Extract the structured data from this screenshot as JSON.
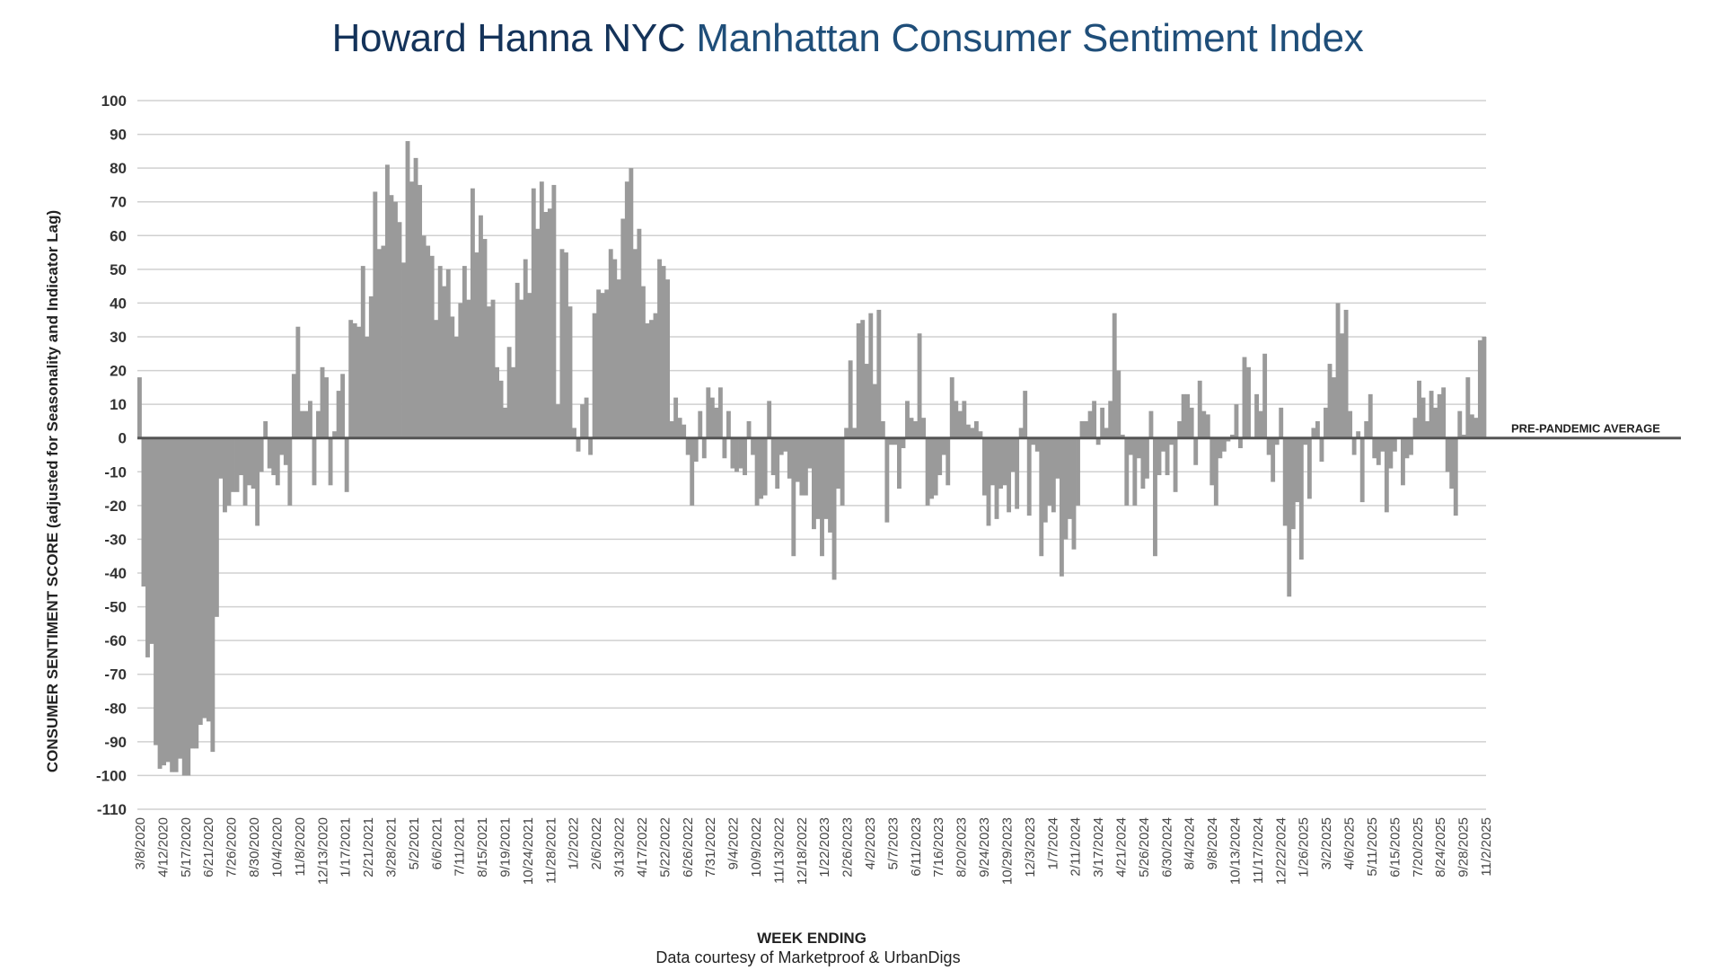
{
  "chart_data": {
    "type": "bar",
    "title": "Howard Hanna NYC Manhattan Consumer Sentiment Index",
    "title_parts": {
      "brand": "Howard Hanna NYC",
      "rest": "Manhattan Consumer Sentiment Index"
    },
    "xlabel": "WEEK ENDING",
    "ylabel": "CONSUMER SENTIMENT SCORE (adjusted for Seasonality and Indicator Lag)",
    "credit": "Data courtesy of Marketproof & UrbanDigs",
    "ylim": [
      -110,
      100
    ],
    "yticks": [
      100,
      90,
      80,
      70,
      60,
      50,
      40,
      30,
      20,
      10,
      0,
      -10,
      -20,
      -30,
      -40,
      -50,
      -60,
      -70,
      -80,
      -90,
      -100,
      -110
    ],
    "grid": true,
    "legend": "none",
    "bar_color": "#9a9a9a",
    "grid_color": "#d0d0d0",
    "zero_line_color": "#555555",
    "reference_line": {
      "label": "PRE-PANDEMIC  AVERAGE",
      "value": 0
    },
    "x_tick_labels": [
      "3/8/2020",
      "4/12/2020",
      "5/17/2020",
      "6/21/2020",
      "7/26/2020",
      "8/30/2020",
      "10/4/2020",
      "11/8/2020",
      "12/13/2020",
      "1/17/2021",
      "2/21/2021",
      "3/28/2021",
      "5/2/2021",
      "6/6/2021",
      "7/11/2021",
      "8/15/2021",
      "9/19/2021",
      "10/24/2021",
      "11/28/2021",
      "1/2/2022",
      "2/6/2022",
      "3/13/2022",
      "4/17/2022",
      "5/22/2022",
      "6/26/2022",
      "7/31/2022",
      "9/4/2022",
      "10/9/2022",
      "11/13/2022",
      "12/18/2022",
      "1/22/2023",
      "2/26/2023",
      "4/2/2023",
      "5/7/2023",
      "6/11/2023",
      "7/16/2023",
      "8/20/2023",
      "9/24/2023",
      "10/29/2023",
      "12/3/2023",
      "1/7/2024",
      "2/11/2024",
      "3/17/2024",
      "4/21/2024",
      "5/26/2024",
      "6/30/2024",
      "8/4/2024",
      "9/8/2024",
      "10/13/2024",
      "11/17/2024",
      "12/22/2024",
      "1/26/2025",
      "3/2/2025",
      "4/6/2025",
      "5/11/2025",
      "6/15/2025",
      "7/20/2025",
      "8/24/2025",
      "9/28/2025",
      "11/2/2025"
    ],
    "values": [
      18,
      -44,
      -65,
      -61,
      -91,
      -98,
      -97,
      -96,
      -99,
      -99,
      -95,
      -100,
      -100,
      -92,
      -92,
      -85,
      -83,
      -84,
      -93,
      -53,
      -12,
      -22,
      -20,
      -16,
      -16,
      -11,
      -20,
      -14,
      -15,
      -26,
      -10,
      5,
      -9,
      -11,
      -14,
      -5,
      -8,
      -20,
      19,
      33,
      8,
      8,
      11,
      -14,
      8,
      21,
      18,
      -14,
      2,
      14,
      19,
      -16,
      35,
      34,
      33,
      51,
      30,
      42,
      73,
      56,
      57,
      81,
      72,
      70,
      64,
      52,
      88,
      76,
      83,
      75,
      60,
      57,
      54,
      35,
      51,
      45,
      50,
      36,
      30,
      40,
      51,
      41,
      74,
      55,
      66,
      59,
      39,
      41,
      21,
      17,
      9,
      27,
      21,
      46,
      41,
      53,
      43,
      74,
      62,
      76,
      67,
      68,
      75,
      10,
      56,
      55,
      39,
      3,
      -4,
      10,
      12,
      -5,
      37,
      44,
      43,
      44,
      56,
      53,
      47,
      65,
      76,
      80,
      56,
      62,
      45,
      34,
      35,
      37,
      53,
      51,
      47,
      5,
      12,
      6,
      4,
      -5,
      -20,
      -7,
      8,
      -6,
      15,
      12,
      9,
      15,
      -6,
      8,
      -9,
      -10,
      -9,
      -11,
      5,
      -5,
      -20,
      -18,
      -17,
      11,
      -11,
      -15,
      -5,
      -4,
      -12,
      -35,
      -13,
      -17,
      -17,
      -9,
      -27,
      -24,
      -35,
      -24,
      -28,
      -42,
      -15,
      -20,
      3,
      23,
      3,
      34,
      35,
      22,
      37,
      16,
      38,
      5,
      -25,
      -2,
      -2,
      -15,
      -3,
      11,
      6,
      5,
      31,
      6,
      -20,
      -18,
      -17,
      -11,
      -5,
      -14,
      18,
      11,
      8,
      11,
      4,
      3,
      5,
      2,
      -17,
      -26,
      -14,
      -24,
      -15,
      -14,
      -22,
      -10,
      -21,
      3,
      14,
      -23,
      -2,
      -4,
      -35,
      -25,
      -20,
      -22,
      -12,
      -41,
      -30,
      -24,
      -33,
      -20,
      5,
      5,
      8,
      11,
      -2,
      9,
      3,
      11,
      37,
      20,
      1,
      -20,
      -5,
      -20,
      -6,
      -15,
      -12,
      8,
      -35,
      -11,
      -4,
      -11,
      -2,
      -16,
      5,
      13,
      13,
      9,
      -8,
      17,
      8,
      7,
      -14,
      -20,
      -6,
      -4,
      -1,
      1,
      10,
      -3,
      24,
      21,
      0,
      13,
      8,
      25,
      -5,
      -13,
      -2,
      9,
      -26,
      -47,
      -27,
      -19,
      -36,
      -2,
      -18,
      3,
      5,
      -7,
      9,
      22,
      18,
      40,
      31,
      38,
      8,
      -5,
      2,
      -19,
      5,
      13,
      -6,
      -8,
      -4,
      -22,
      -9,
      -4,
      0,
      -14,
      -6,
      -5,
      6,
      17,
      12,
      5,
      14,
      9,
      13,
      15,
      -10,
      -15,
      -23,
      8,
      1,
      18,
      7,
      6,
      29,
      30
    ]
  }
}
